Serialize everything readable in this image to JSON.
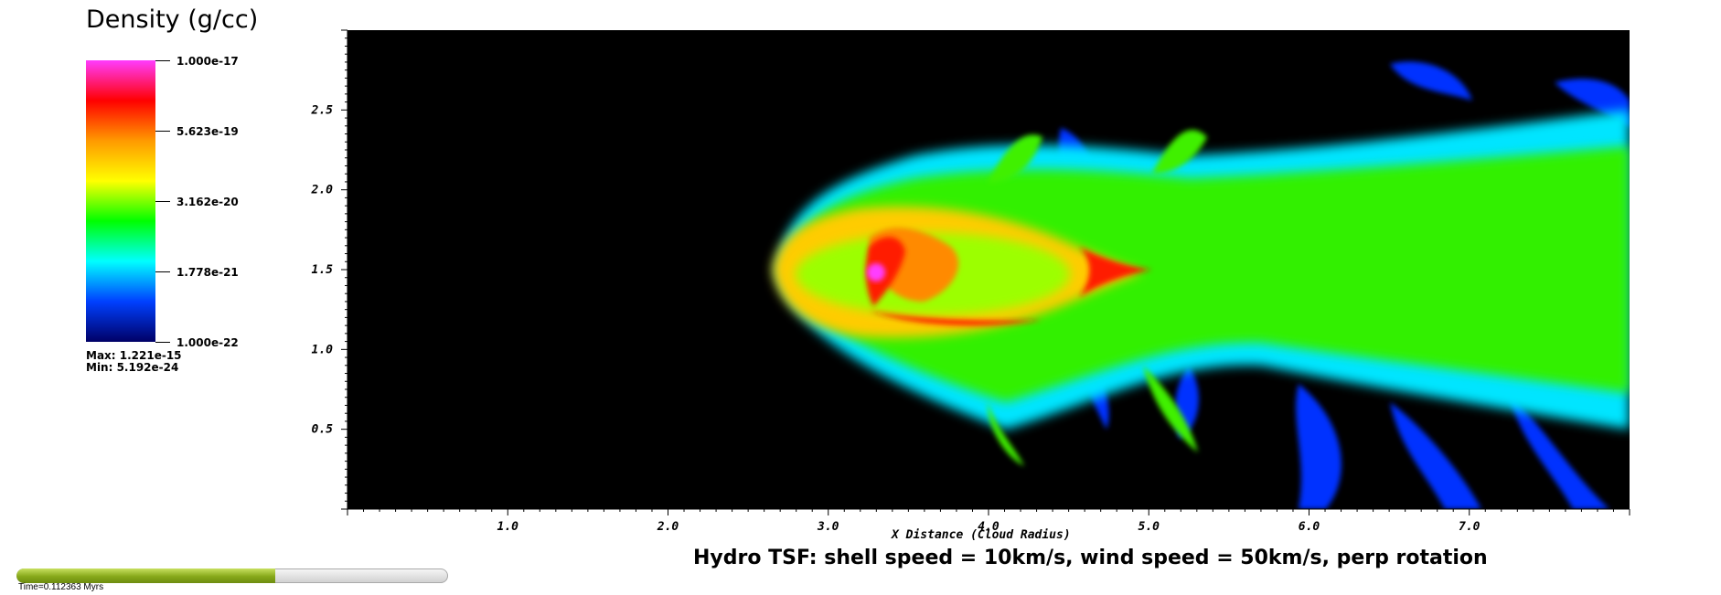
{
  "legend": {
    "title": "Density (g/cc)",
    "ticks": [
      "1.000e-17",
      "5.623e-19",
      "3.162e-20",
      "1.778e-21",
      "1.000e-22"
    ],
    "max_label": "Max:  1.221e-15",
    "min_label": "Min:  5.192e-24",
    "colors": [
      "#ff3cff",
      "#ff0000",
      "#ff9a00",
      "#ffff00",
      "#00ff00",
      "#00ffff",
      "#0040ff",
      "#000066",
      "#000000"
    ]
  },
  "chart_data": {
    "type": "heatmap",
    "title": "Hydro TSF: shell speed = 10km/s, wind speed = 50km/s, perp rotation",
    "xlabel": "X Distance (Cloud Radius)",
    "ylabel": "",
    "xlim": [
      0,
      8
    ],
    "ylim": [
      0,
      3
    ],
    "x_ticks": [
      "1.0",
      "2.0",
      "3.0",
      "4.0",
      "5.0",
      "6.0",
      "7.0"
    ],
    "y_ticks": [
      "0.5",
      "1.0",
      "1.5",
      "2.0",
      "2.5"
    ],
    "colorscale_log_range": [
      -22,
      -17
    ]
  },
  "progress": {
    "fraction": 0.6,
    "time_label": "Time=0.112363 Myrs"
  }
}
